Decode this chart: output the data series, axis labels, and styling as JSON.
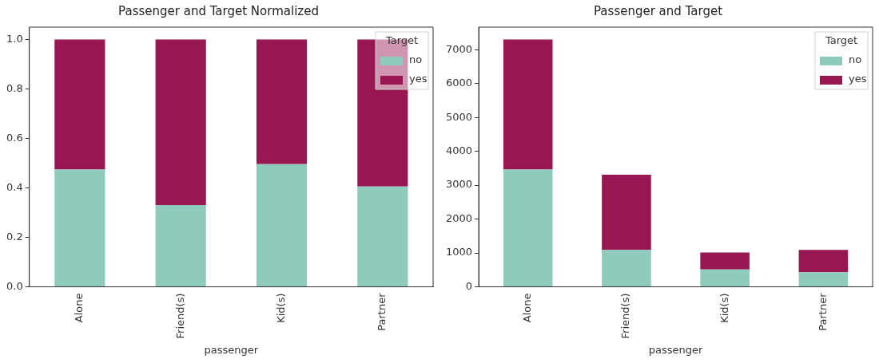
{
  "chart_data": [
    {
      "type": "bar",
      "title": "Passenger and Target Normalized",
      "xlabel": "passenger",
      "legend_title": "Target",
      "categories": [
        "Alone",
        "Friend(s)",
        "Kid(s)",
        "Partner"
      ],
      "stacked": true,
      "legend": "top right",
      "grid": false,
      "ylim": [
        0,
        1.05
      ],
      "yticks": [
        {
          "value": 0,
          "label": "0.0"
        },
        {
          "value": 0.2,
          "label": "0.2"
        },
        {
          "value": 0.4,
          "label": "0.4"
        },
        {
          "value": 0.6,
          "label": "0.6"
        },
        {
          "value": 0.8,
          "label": "0.8"
        },
        {
          "value": 1,
          "label": "1.0"
        }
      ],
      "series": [
        {
          "name": "no",
          "color": "#8fcbbb",
          "values": [
            0.474,
            0.331,
            0.496,
            0.406
          ]
        },
        {
          "name": "yes",
          "color": "#981753",
          "values": [
            0.526,
            0.669,
            0.504,
            0.594
          ]
        }
      ]
    },
    {
      "type": "bar",
      "title": "Passenger and Target",
      "xlabel": "passenger",
      "legend_title": "Target",
      "categories": [
        "Alone",
        "Friend(s)",
        "Kid(s)",
        "Partner"
      ],
      "stacked": true,
      "legend": "top right",
      "grid": false,
      "ylim": [
        0,
        7665
      ],
      "yticks": [
        0,
        1000,
        2000,
        3000,
        4000,
        5000,
        6000,
        7000
      ],
      "series": [
        {
          "name": "no",
          "color": "#8fcbbb",
          "values": [
            3460,
            1090,
            510,
            430
          ]
        },
        {
          "name": "yes",
          "color": "#981753",
          "values": [
            3840,
            2220,
            500,
            660
          ]
        }
      ]
    }
  ]
}
